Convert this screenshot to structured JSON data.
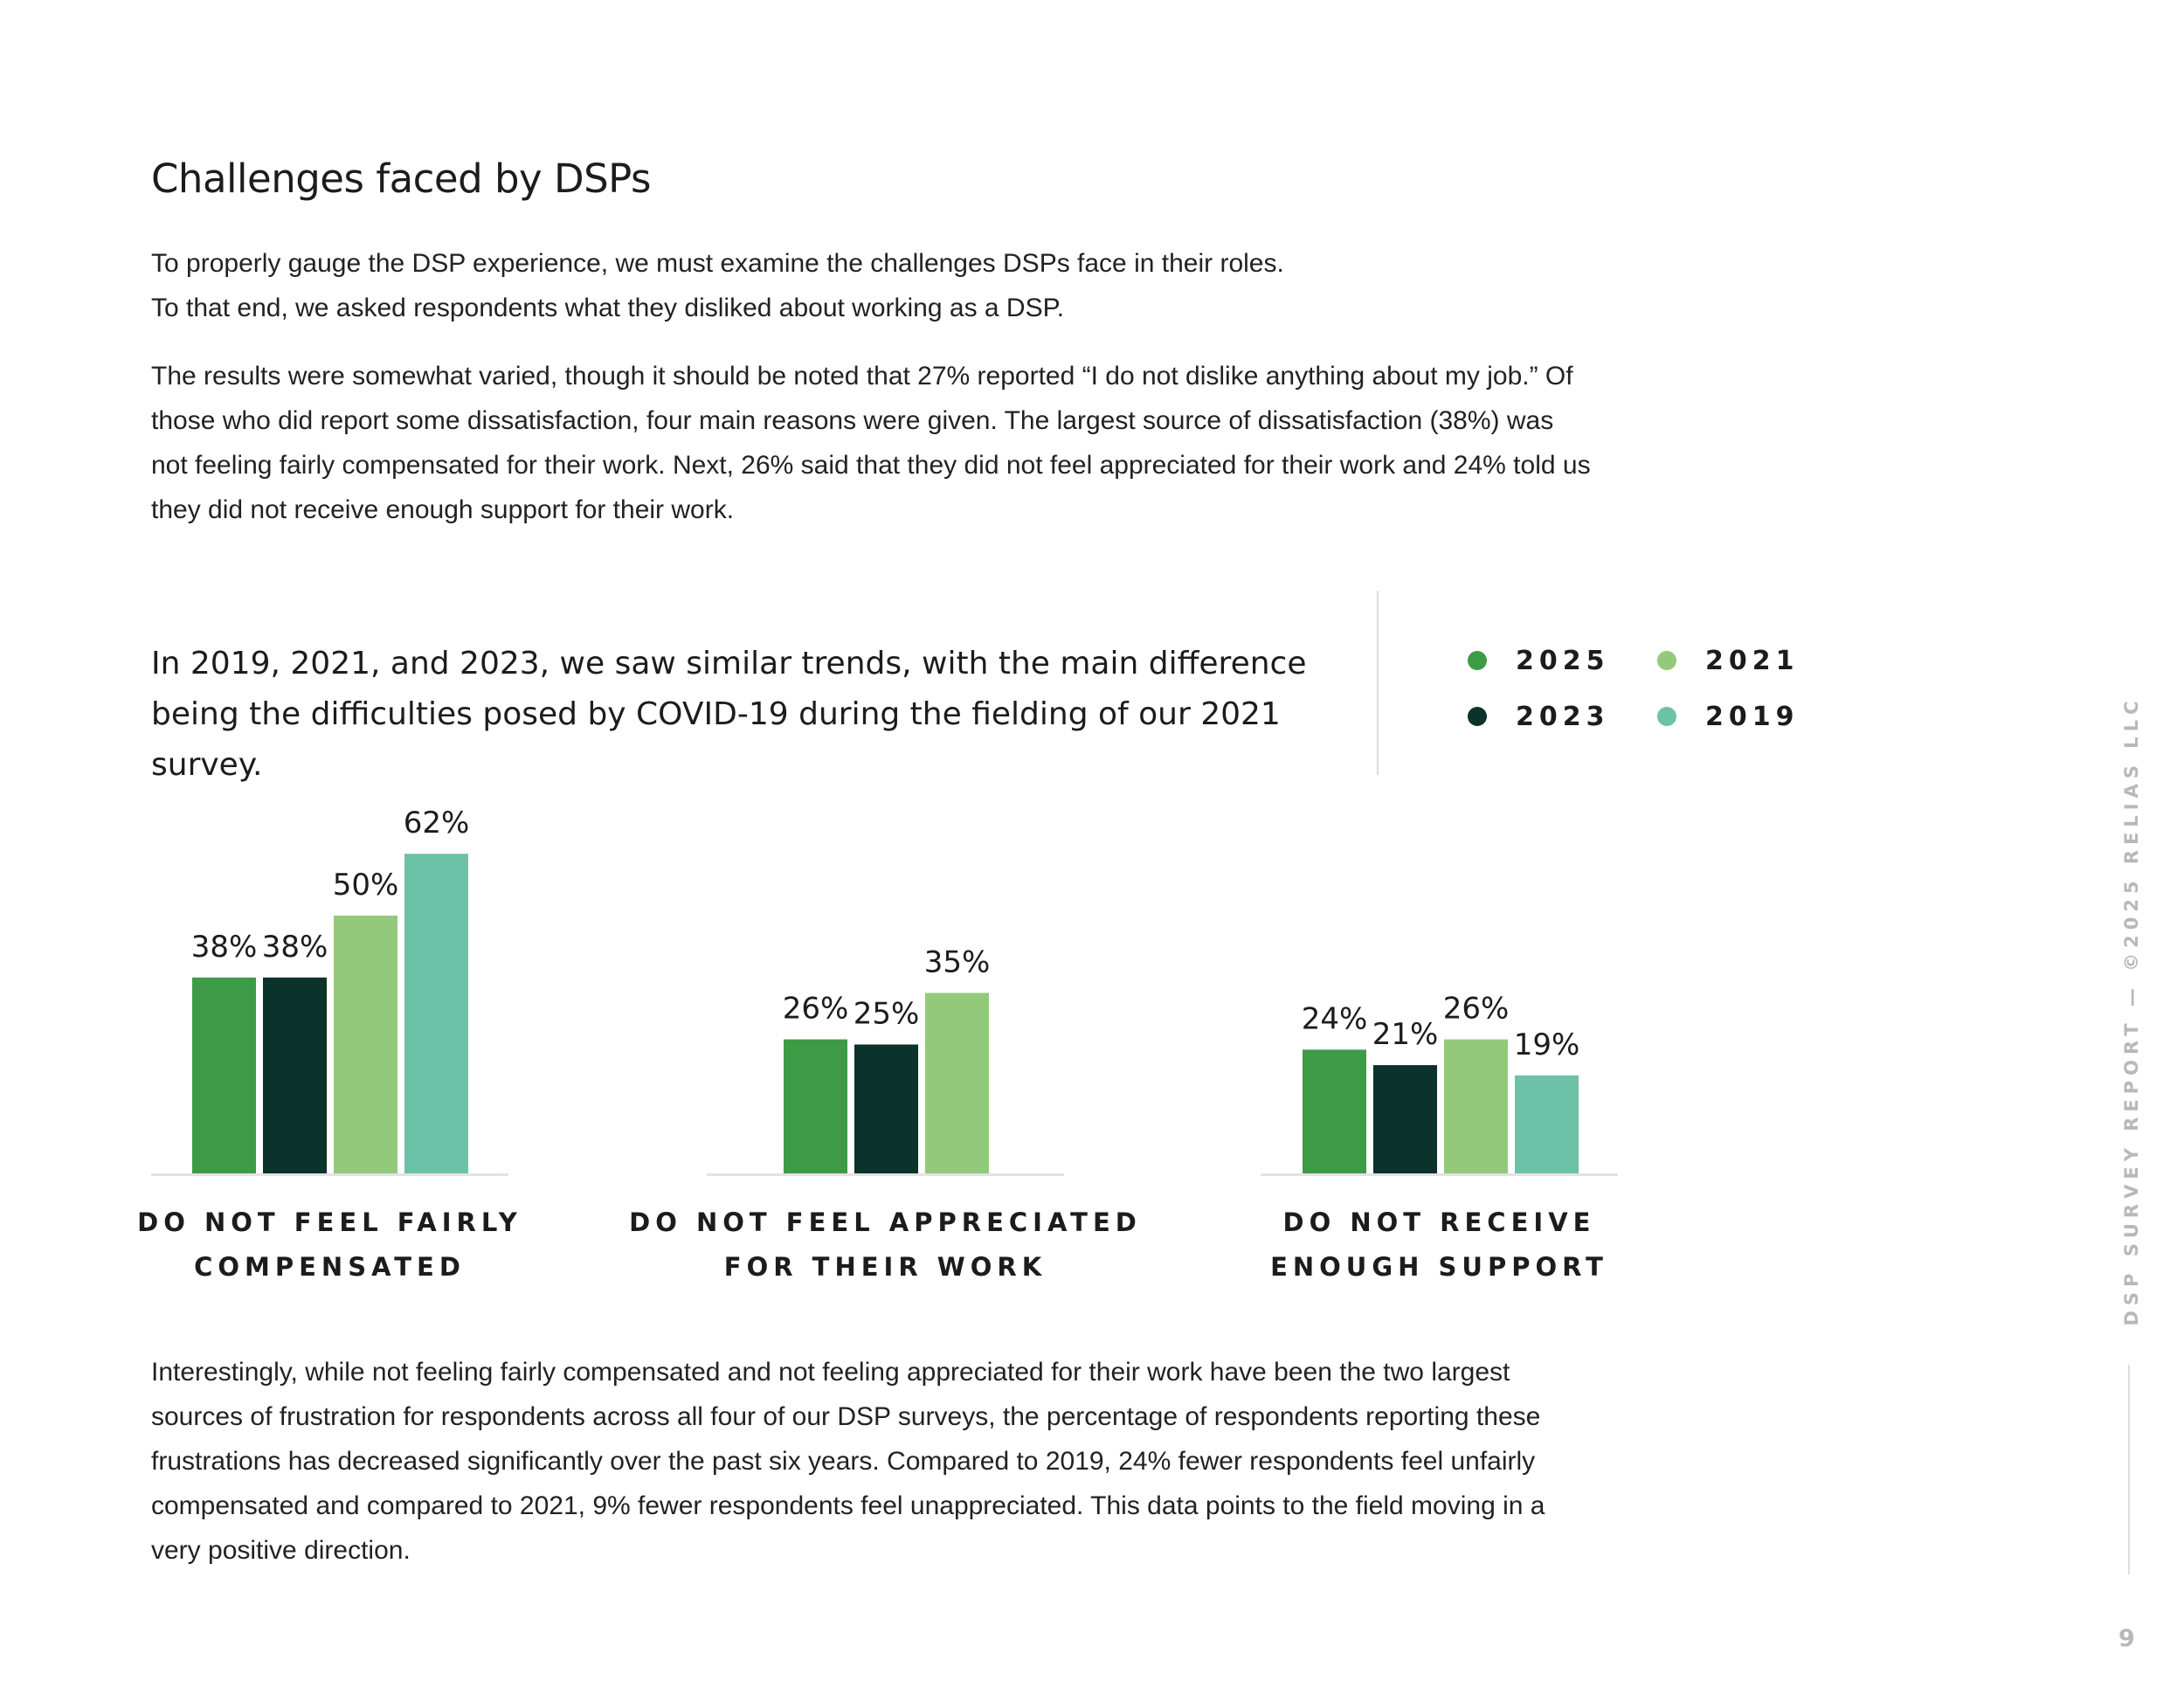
{
  "header": {
    "title": "Challenges faced by DSPs"
  },
  "intro": [
    "To properly gauge the DSP experience, we must examine the challenges DSPs face in their roles.",
    "To that end, we asked respondents what they disliked about working as a DSP."
  ],
  "paragraph": "The results were somewhat varied, though it should be noted that 27% reported “I do not dislike anything about my job.” Of those who did report some dissatisfaction, four main reasons were given. The largest source of dissatisfaction (38%) was not feeling fairly compensated for their work. Next, 26% said that they did not feel appreciated for their work and 24% told us they did not receive enough support for their work.",
  "callout": "In 2019, 2021, and 2023, we saw similar trends, with the main difference being the difficulties posed by COVID-19 during the fielding of our 2021 survey.",
  "chart_data": {
    "type": "bar",
    "categories": [
      "DO NOT FEEL FAIRLY COMPENSATED",
      "DO NOT FEEL APPRECIATED FOR THEIR WORK",
      "DO NOT RECEIVE ENOUGH SUPPORT"
    ],
    "series": [
      {
        "name": "2025",
        "color": "#3d9a45",
        "values": [
          38,
          26,
          24
        ],
        "value_labels": [
          "38%",
          "26%",
          "24%"
        ]
      },
      {
        "name": "2023",
        "color": "#0b332b",
        "values": [
          38,
          25,
          21
        ],
        "value_labels": [
          "38%",
          "25%",
          "21%"
        ]
      },
      {
        "name": "2021",
        "color": "#93c97a",
        "values": [
          50,
          35,
          26
        ],
        "value_labels": [
          "50%",
          "35%",
          "26%"
        ]
      },
      {
        "name": "2019",
        "color": "#6cc2a7",
        "values": [
          62,
          null,
          19
        ],
        "value_labels": [
          "62%",
          null,
          "19%"
        ]
      }
    ]
  },
  "conclusion": "Interestingly, while not feeling fairly compensated and not feeling appreciated for their work have been the two largest sources of frustration for respondents across all four of our DSP surveys, the percentage of respondents reporting these frustrations has decreased significantly over the past six years. Compared to 2019, 24% fewer respondents feel unfairly compensated and compared to 2021, 9% fewer respondents feel unappreciated. This data points to the field moving in a very positive direction.",
  "footer": {
    "side_text": "DSP SURVEY REPORT — ©2025 RELIAS LLC",
    "page_number": "9"
  }
}
